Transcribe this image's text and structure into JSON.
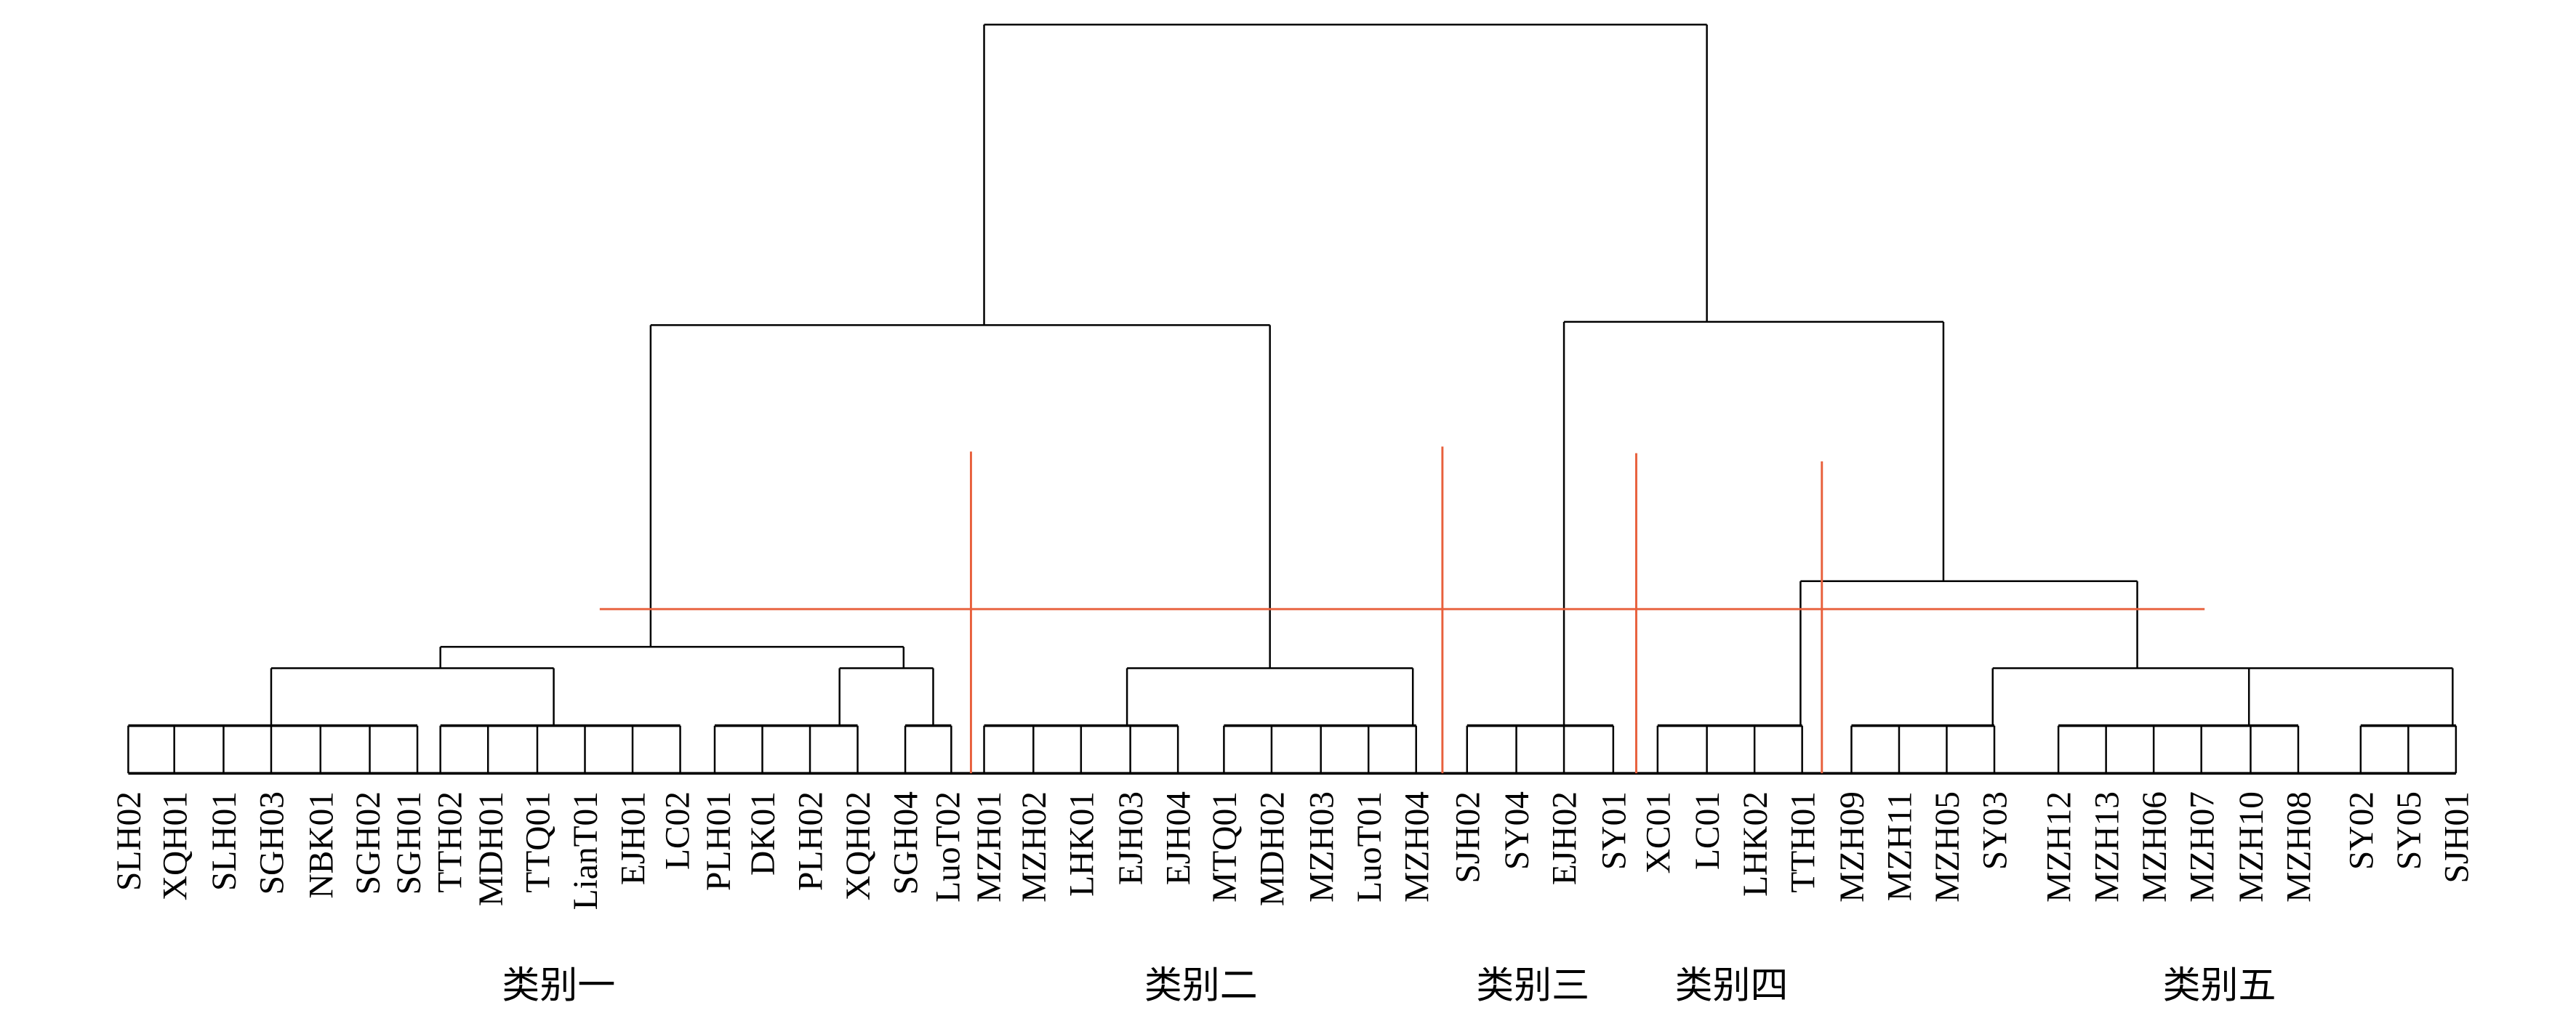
{
  "leaves": [
    "SLH02",
    "XQH01",
    "SLH01",
    "SGH03",
    "NBK01",
    "SGH02",
    "SGH01",
    "TTH02",
    "MDH01",
    "TTQ01",
    "LianT01",
    "EJH01",
    "LC02",
    "PLH01",
    "DK01",
    "PLH02",
    "XQH02",
    "SGH04",
    "LuoT02",
    "MZH01",
    "MZH02",
    "LHK01",
    "EJH03",
    "EJH04",
    "MTQ01",
    "MDH02",
    "MZH03",
    "LuoT01",
    "MZH04",
    "SJH02",
    "SY04",
    "EJH02",
    "SY01",
    "XC01",
    "LC01",
    "LHK02",
    "TTH01",
    "MZH09",
    "MZH11",
    "MZH05",
    "SY03",
    "MZH12",
    "MZH13",
    "MZH06",
    "MZH07",
    "MZH10",
    "MZH08",
    "SY02",
    "SY05",
    "SJH01"
  ],
  "categories": [
    "类别一",
    "类别二",
    "类别三",
    "类别四",
    "类别五"
  ],
  "colors": {
    "tree": "#000000",
    "cut_lines": "#e8603c"
  }
}
